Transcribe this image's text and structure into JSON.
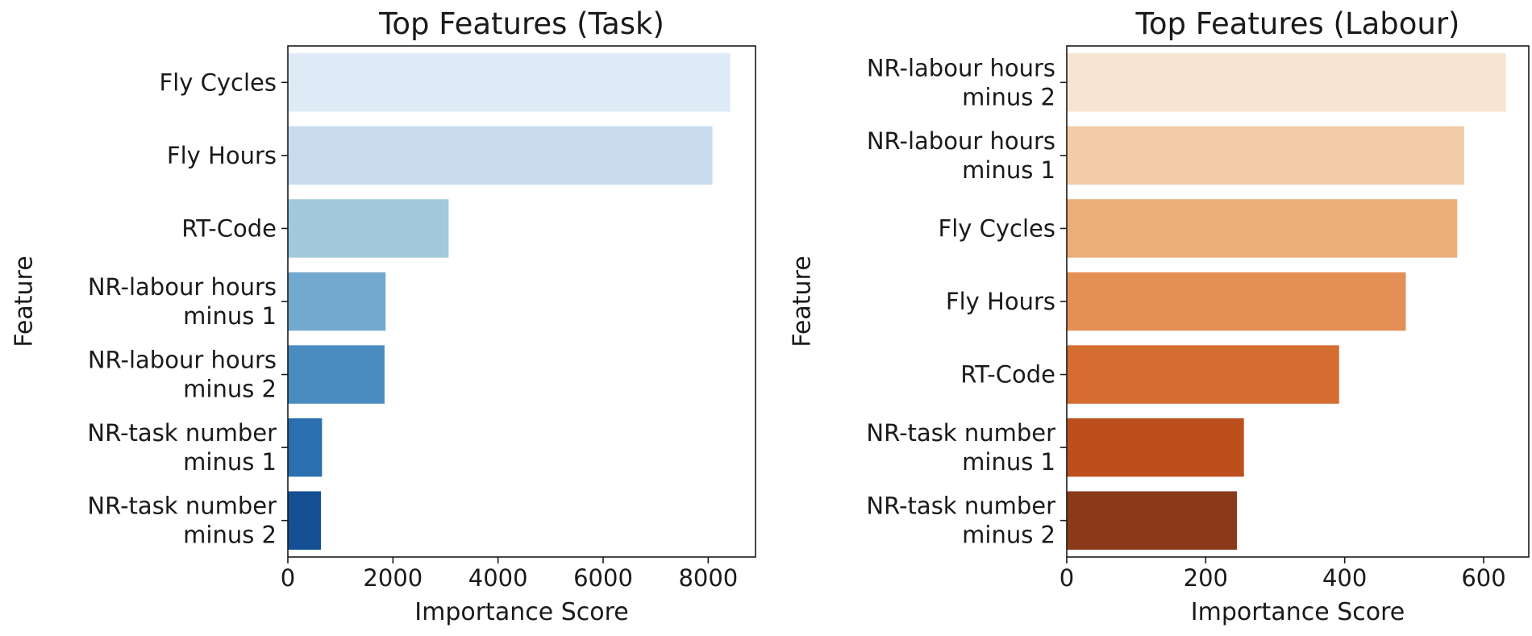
{
  "chart_data": [
    {
      "type": "bar",
      "orientation": "horizontal",
      "title": "Top Features (Task)",
      "xlabel": "Importance Score",
      "ylabel": "Feature",
      "categories": [
        [
          "Fly Cycles"
        ],
        [
          "Fly Hours"
        ],
        [
          "RT-Code"
        ],
        [
          "NR-labour hours",
          "minus 1"
        ],
        [
          "NR-labour hours",
          "minus 2"
        ],
        [
          "NR-task number",
          "minus 1"
        ],
        [
          "NR-task number",
          "minus 2"
        ]
      ],
      "values": [
        8420,
        8080,
        3060,
        1860,
        1840,
        650,
        630
      ],
      "colors": [
        "#deebf7",
        "#c8dcee",
        "#a2c9dc",
        "#74a9cf",
        "#4a8cc0",
        "#2a6fae",
        "#134f92"
      ],
      "xlim": [
        0,
        8900
      ],
      "xticks": [
        0,
        2000,
        4000,
        6000,
        8000
      ],
      "grid": false
    },
    {
      "type": "bar",
      "orientation": "horizontal",
      "title": "Top Features (Labour)",
      "xlabel": "Importance Score",
      "ylabel": "Feature",
      "categories": [
        [
          "NR-labour hours",
          "minus 2"
        ],
        [
          "NR-labour hours",
          "minus 1"
        ],
        [
          "Fly Cycles"
        ],
        [
          "Fly Hours"
        ],
        [
          "RT-Code"
        ],
        [
          "NR-task number",
          "minus 1"
        ],
        [
          "NR-task number",
          "minus 2"
        ]
      ],
      "values": [
        632,
        572,
        562,
        488,
        392,
        255,
        245
      ],
      "colors": [
        "#f7e5d2",
        "#f2cca8",
        "#ebae7a",
        "#e48f55",
        "#d46d2f",
        "#bd4f1d",
        "#8a3a18"
      ],
      "xlim": [
        0,
        665
      ],
      "xticks": [
        0,
        200,
        400,
        600
      ],
      "grid": false
    }
  ]
}
